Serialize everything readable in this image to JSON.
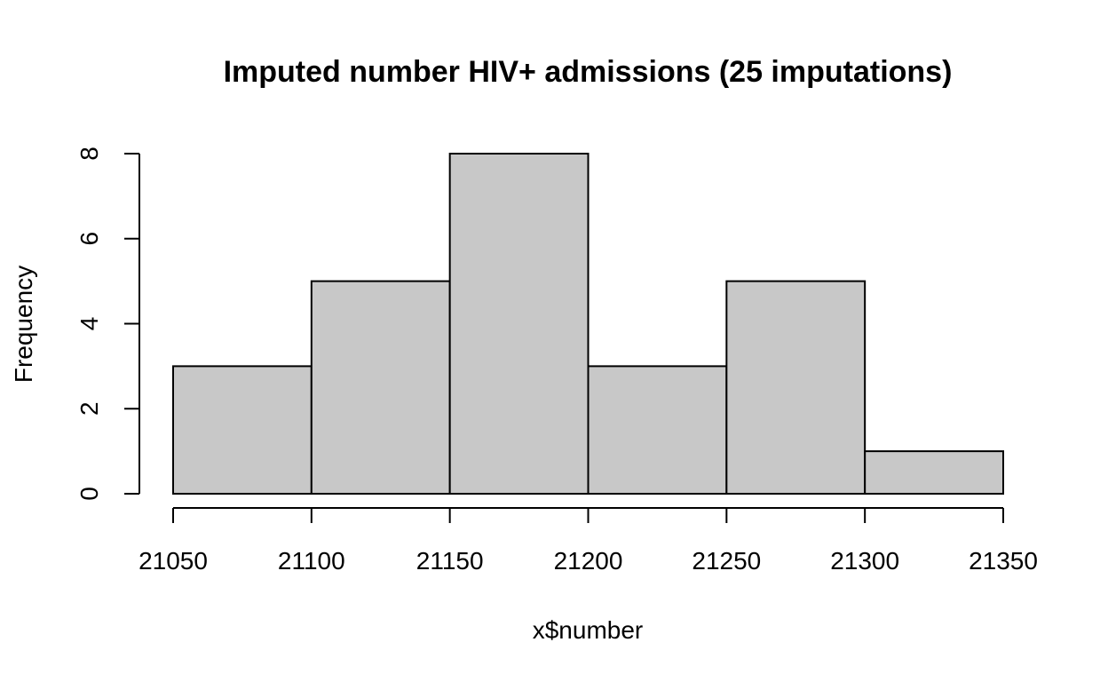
{
  "chart_data": {
    "type": "bar",
    "title": "Imputed number HIV+ admissions (25 imputations)",
    "xlabel": "x$number",
    "ylabel": "Frequency",
    "bins": [
      {
        "from": 21050,
        "to": 21100,
        "count": 3
      },
      {
        "from": 21100,
        "to": 21150,
        "count": 5
      },
      {
        "from": 21150,
        "to": 21200,
        "count": 8
      },
      {
        "from": 21200,
        "to": 21250,
        "count": 3
      },
      {
        "from": 21250,
        "to": 21300,
        "count": 5
      },
      {
        "from": 21300,
        "to": 21350,
        "count": 1
      }
    ],
    "x_ticks": [
      21050,
      21100,
      21150,
      21200,
      21250,
      21300,
      21350
    ],
    "y_ticks": [
      0,
      2,
      4,
      6,
      8
    ],
    "xlim": [
      21050,
      21350
    ],
    "ylim": [
      0,
      8
    ],
    "bar_color": "#c8c8c8",
    "grid": false,
    "legend": "none"
  }
}
